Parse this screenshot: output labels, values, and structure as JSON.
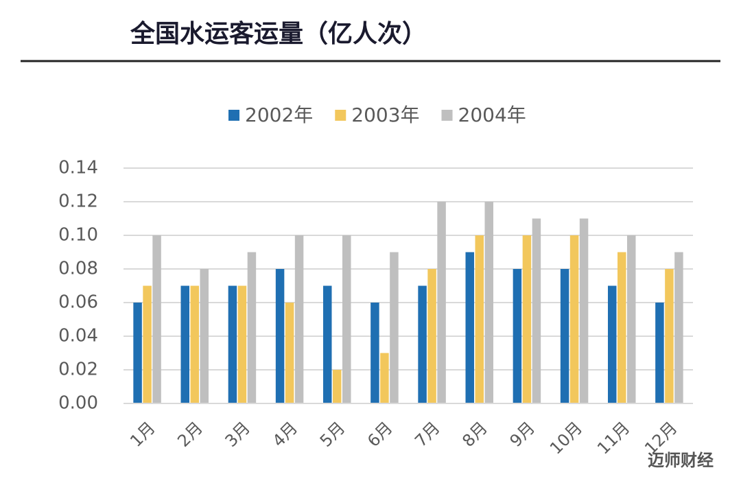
{
  "chart_data": {
    "type": "bar",
    "title": "全国水运客运量（亿人次）",
    "categories": [
      "1月",
      "2月",
      "3月",
      "4月",
      "5月",
      "6月",
      "7月",
      "8月",
      "9月",
      "10月",
      "11月",
      "12月"
    ],
    "series": [
      {
        "name": "2002年",
        "color": "#1f6fb2",
        "values": [
          0.06,
          0.07,
          0.07,
          0.08,
          0.07,
          0.06,
          0.07,
          0.09,
          0.08,
          0.08,
          0.07,
          0.06
        ]
      },
      {
        "name": "2003年",
        "color": "#f2c75c",
        "values": [
          0.07,
          0.07,
          0.07,
          0.06,
          0.02,
          0.03,
          0.08,
          0.1,
          0.1,
          0.1,
          0.09,
          0.08
        ]
      },
      {
        "name": "2004年",
        "color": "#bfbfbf",
        "values": [
          0.1,
          0.08,
          0.09,
          0.1,
          0.1,
          0.09,
          0.12,
          0.12,
          0.11,
          0.11,
          0.1,
          0.09
        ]
      }
    ],
    "ylim": [
      0,
      0.14
    ],
    "yticks": [
      {
        "value": 0,
        "label": "0.00"
      },
      {
        "value": 0.02,
        "label": "0.02"
      },
      {
        "value": 0.04,
        "label": "0.04"
      },
      {
        "value": 0.06,
        "label": "0.06"
      },
      {
        "value": 0.08,
        "label": "0.08"
      },
      {
        "value": 0.1,
        "label": "0.10"
      },
      {
        "value": 0.12,
        "label": "0.12"
      },
      {
        "value": 0.14,
        "label": "0.14"
      }
    ],
    "grid": true,
    "legend": "top",
    "watermark": "迈师财经"
  }
}
